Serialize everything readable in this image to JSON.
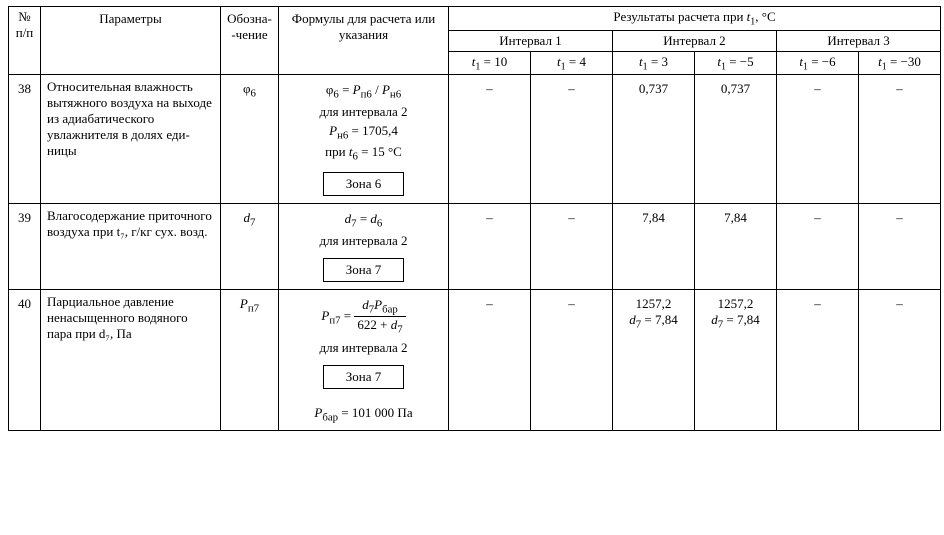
{
  "header": {
    "num": "№ п/п",
    "params": "Параметры",
    "oboz": "Обозна­\n-чение",
    "formula": "Формулы для расчета или указания",
    "results_title": "Результаты расчета при ",
    "results_var": "t",
    "results_var_sub": "1",
    "results_unit": ", °C",
    "intervals": [
      "Интервал 1",
      "Интервал 2",
      "Интервал 3"
    ],
    "tvar": "t",
    "tvar_sub": "1",
    "tvals": [
      "10",
      "4",
      "3",
      "−5",
      "−6",
      "−30"
    ]
  },
  "rows": [
    {
      "num": "38",
      "param": "Относительная влажность вытяжного воздуха на вы­ходе из адиабатического увлажнителя в долях еди­ницы",
      "symbol_html": "φ<sub>6</sub>",
      "formula": {
        "main_html": "φ<sub>6</sub> = <span class='ital'>P</span><sub>п6</sub> / <span class='ital'>P</span><sub>н6</sub>",
        "note1": "для интервала 2",
        "note2_html": "<span class='ital'>P</span><sub>н6</sub> = 1705,4",
        "note3_html": "при <span class='ital'>t</span><sub>6</sub> = 15 °C",
        "zone": "Зона 6"
      },
      "results": [
        "–",
        "–",
        "0,737",
        "0,737",
        "–",
        "–"
      ]
    },
    {
      "num": "39",
      "param": "Влагосодержание приточ­ного воздуха при t₇, г/кг сух. возд.",
      "symbol_html": "<span class='ital'>d</span><sub>7</sub>",
      "formula": {
        "main_html": "<span class='ital'>d</span><sub>7</sub> = <span class='ital'>d</span><sub>6</sub>",
        "note1": "для интервала 2",
        "zone": "Зона 7"
      },
      "results": [
        "–",
        "–",
        "7,84",
        "7,84",
        "–",
        "–"
      ]
    },
    {
      "num": "40",
      "param": "Парциальное давление ненасыщенного водяного пара при d₇, Па",
      "symbol_html": "<span class='ital'>P</span><sub>п7</sub>",
      "formula": {
        "frac": {
          "lhs_html": "<span class='ital'>P</span><sub>п7</sub> =",
          "num_html": "<span class='ital'>d</span><sub>7</sub><span class='ital'>P</span><sub>бар</sub>",
          "den_html": "622 + <span class='ital'>d</span><sub>7</sub>"
        },
        "note1": "для интервала 2",
        "zone": "Зона 7",
        "note_after_html": "<span class='ital'>P</span><sub>бар</sub> = 101 000  Па"
      },
      "results_html": [
        "–",
        "–",
        "1257,2<br><span class='ital'>d</span><sub>7</sub> = 7,84",
        "1257,2<br><span class='ital'>d</span><sub>7</sub> = 7,84",
        "–",
        "–"
      ]
    }
  ]
}
